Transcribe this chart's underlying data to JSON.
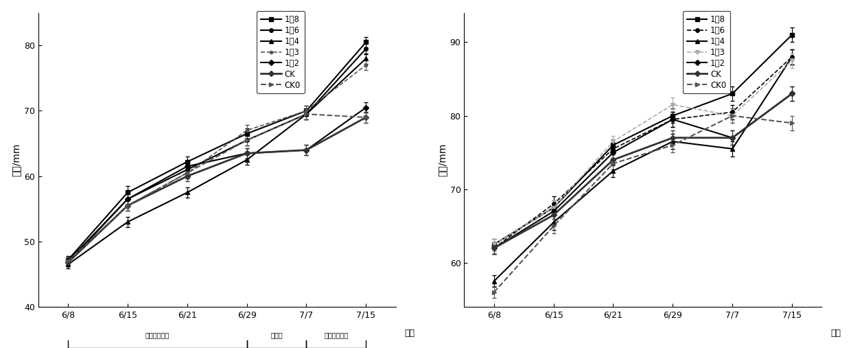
{
  "x_labels": [
    "6/8",
    "6/15",
    "6/21",
    "6/29",
    "7/7",
    "7/15"
  ],
  "x_positions": [
    0,
    1,
    2,
    3,
    4,
    5
  ],
  "left_ylabel": "横径/mm",
  "right_ylabel": "纵径/mm",
  "xlabel": "日期",
  "left_ylim": [
    40,
    85
  ],
  "right_ylim": [
    54,
    94
  ],
  "left_yticks": [
    40,
    50,
    60,
    70,
    80
  ],
  "right_yticks": [
    60,
    70,
    80,
    90
  ],
  "series_keys": [
    "1:8",
    "1:6",
    "1:4",
    "1:3",
    "1:2",
    "CK",
    "CK0"
  ],
  "legend_display": [
    "1：8",
    "1：6",
    "1：4",
    "1：3",
    "1：2",
    "CK",
    "CK0"
  ],
  "phase_labels": [
    "第一次生长期",
    "休眠期",
    "第二次生长期"
  ],
  "left_series": {
    "1:8": [
      47.2,
      57.5,
      62.2,
      66.5,
      70.0,
      80.5
    ],
    "1:6": [
      47.0,
      56.5,
      61.0,
      65.5,
      69.5,
      79.5
    ],
    "1:4": [
      46.5,
      53.0,
      57.5,
      62.5,
      69.5,
      78.0
    ],
    "1:3": [
      47.0,
      55.5,
      60.5,
      67.0,
      70.0,
      77.0
    ],
    "1:2": [
      46.8,
      56.5,
      61.5,
      63.5,
      64.0,
      70.5
    ],
    "CK": [
      46.8,
      55.5,
      60.0,
      63.5,
      64.0,
      69.0
    ],
    "CK0": [
      47.0,
      55.5,
      60.5,
      65.5,
      69.5,
      69.0
    ]
  },
  "right_series": {
    "1:8": [
      62.5,
      67.5,
      76.0,
      80.0,
      83.0,
      91.0
    ],
    "1:6": [
      62.0,
      68.0,
      75.5,
      79.5,
      80.5,
      88.0
    ],
    "1:4": [
      57.5,
      65.5,
      72.5,
      76.5,
      75.5,
      88.0
    ],
    "1:3": [
      62.5,
      67.5,
      76.5,
      81.5,
      80.0,
      87.5
    ],
    "1:2": [
      62.0,
      67.0,
      75.0,
      79.5,
      77.0,
      83.0
    ],
    "CK": [
      62.0,
      66.5,
      74.0,
      77.0,
      77.0,
      83.0
    ],
    "CK0": [
      56.0,
      65.0,
      73.5,
      76.0,
      80.0,
      79.0
    ]
  },
  "left_errors": {
    "1:8": [
      0.6,
      1.0,
      0.8,
      0.8,
      0.8,
      0.8
    ],
    "1:6": [
      0.6,
      0.8,
      0.8,
      0.8,
      0.8,
      0.8
    ],
    "1:4": [
      0.6,
      0.8,
      0.8,
      0.8,
      0.8,
      0.8
    ],
    "1:3": [
      0.6,
      0.8,
      0.8,
      0.8,
      0.8,
      0.8
    ],
    "1:2": [
      0.6,
      0.8,
      0.8,
      0.8,
      0.8,
      0.8
    ],
    "CK": [
      0.6,
      0.8,
      0.8,
      0.8,
      0.8,
      0.8
    ],
    "CK0": [
      0.6,
      0.8,
      0.8,
      0.8,
      0.8,
      0.8
    ]
  },
  "right_errors": {
    "1:8": [
      0.8,
      1.0,
      0.8,
      1.0,
      1.0,
      1.0
    ],
    "1:6": [
      0.8,
      1.0,
      0.8,
      1.0,
      1.0,
      1.0
    ],
    "1:4": [
      0.8,
      1.0,
      0.8,
      1.0,
      1.0,
      1.0
    ],
    "1:3": [
      0.8,
      1.0,
      0.8,
      1.0,
      1.0,
      1.0
    ],
    "1:2": [
      0.8,
      1.0,
      0.8,
      1.0,
      1.0,
      1.0
    ],
    "CK": [
      0.8,
      1.0,
      0.8,
      1.0,
      1.0,
      1.0
    ],
    "CK0": [
      0.8,
      1.0,
      0.8,
      1.0,
      1.0,
      1.0
    ]
  },
  "left_styles": {
    "1:8": {
      "color": "#000000",
      "marker": "s",
      "ls": "-",
      "lw": 1.5,
      "ms": 4
    },
    "1:6": {
      "color": "#000000",
      "marker": "o",
      "ls": "-",
      "lw": 1.5,
      "ms": 4
    },
    "1:4": {
      "color": "#000000",
      "marker": "^",
      "ls": "-",
      "lw": 1.5,
      "ms": 5
    },
    "1:3": {
      "color": "#555555",
      "marker": ".",
      "ls": "--",
      "lw": 1.2,
      "ms": 6
    },
    "1:2": {
      "color": "#000000",
      "marker": "D",
      "ls": "-",
      "lw": 1.5,
      "ms": 4
    },
    "CK": {
      "color": "#333333",
      "marker": "D",
      "ls": "-",
      "lw": 2.0,
      "ms": 4
    },
    "CK0": {
      "color": "#555555",
      "marker": ">",
      "ls": "--",
      "lw": 1.5,
      "ms": 4
    }
  },
  "right_styles": {
    "1:8": {
      "color": "#000000",
      "marker": "s",
      "ls": "-",
      "lw": 1.5,
      "ms": 4
    },
    "1:6": {
      "color": "#000000",
      "marker": "o",
      "ls": "--",
      "lw": 1.2,
      "ms": 4
    },
    "1:4": {
      "color": "#000000",
      "marker": "^",
      "ls": "-",
      "lw": 1.5,
      "ms": 5
    },
    "1:3": {
      "color": "#aaaaaa",
      "marker": "v",
      "ls": "--",
      "lw": 1.2,
      "ms": 5
    },
    "1:2": {
      "color": "#000000",
      "marker": "D",
      "ls": "-",
      "lw": 1.5,
      "ms": 4
    },
    "CK": {
      "color": "#333333",
      "marker": "D",
      "ls": "-",
      "lw": 2.0,
      "ms": 4
    },
    "CK0": {
      "color": "#555555",
      "marker": ">",
      "ls": "--",
      "lw": 1.5,
      "ms": 4
    }
  }
}
